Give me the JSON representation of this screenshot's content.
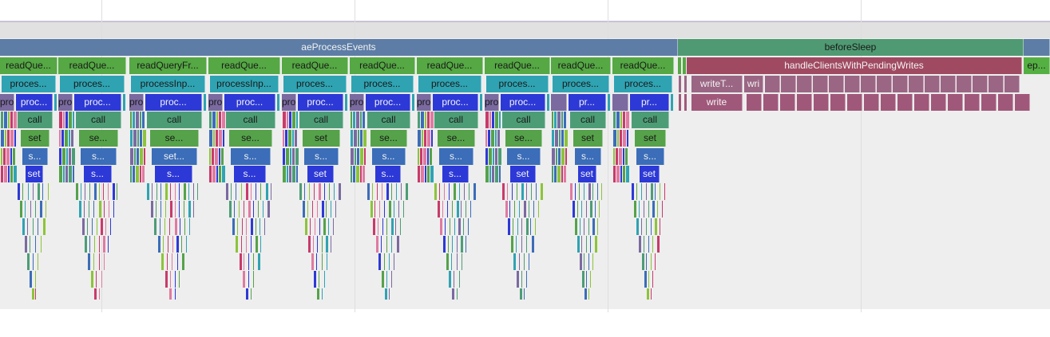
{
  "flamegraph": {
    "root": {
      "ae": "aeProcessEvents",
      "before": "beforeSleep",
      "ep": "ep..."
    },
    "cluster_labels": [
      {
        "rq": "readQue...",
        "pr": "proces...",
        "small": "pro",
        "proc": "proc...",
        "call": "call",
        "set": "set",
        "s1": "s...",
        "s2": "set"
      },
      {
        "rq": "readQue...",
        "pr": "proces...",
        "small": "pro",
        "proc": "proc...",
        "call": "call",
        "set": "se...",
        "s1": "s...",
        "s2": "s..."
      },
      {
        "rq": "readQueryFr...",
        "pr": "processInp...",
        "small": "pro",
        "proc": "proc...",
        "call": "call",
        "set": "se...",
        "s1": "set...",
        "s2": "s..."
      },
      {
        "rq": "readQue...",
        "pr": "processInp...",
        "small": "pro",
        "proc": "proc...",
        "call": "call",
        "set": "se...",
        "s1": "s...",
        "s2": "s..."
      },
      {
        "rq": "readQue...",
        "pr": "proces...",
        "small": "pro",
        "proc": "proc...",
        "call": "call",
        "set": "set",
        "s1": "s...",
        "s2": "set"
      },
      {
        "rq": "readQue...",
        "pr": "proces...",
        "small": "pro",
        "proc": "proc...",
        "call": "call",
        "set": "se...",
        "s1": "s...",
        "s2": "s..."
      },
      {
        "rq": "readQue...",
        "pr": "proces...",
        "small": "pro",
        "proc": "proc...",
        "call": "call",
        "set": "se...",
        "s1": "s...",
        "s2": "s..."
      },
      {
        "rq": "readQue...",
        "pr": "proces...",
        "small": "pro",
        "proc": "proc...",
        "call": "call",
        "set": "se...",
        "s1": "s...",
        "s2": "set"
      },
      {
        "rq": "readQue...",
        "pr": "proces...",
        "small": "",
        "proc": "pr...",
        "call": "call",
        "set": "set",
        "s1": "s...",
        "s2": "set"
      },
      {
        "rq": "readQue...",
        "pr": "proces...",
        "small": "",
        "proc": "pr...",
        "call": "call",
        "set": "set",
        "s1": "s...",
        "s2": "set"
      }
    ],
    "writes": {
      "handle": "handleClientsWithPendingWrites",
      "writeT": "writeT...",
      "wri": "wri",
      "write": "write"
    },
    "colors": {
      "ae": "#5d7da6",
      "before": "#4f9a72",
      "ep": "#55b043",
      "readQuery": "#55a844",
      "process": "#2fa3b2",
      "proc": "#2d39d6",
      "pro": "#7a6aa0",
      "call": "#4c9d76",
      "set": "#55a24a",
      "s": "#3b6db8",
      "handle": "#a04a62",
      "writeT": "#9b6684",
      "write": "#a0587a"
    }
  }
}
